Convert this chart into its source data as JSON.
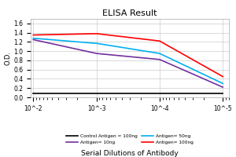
{
  "title": "ELISA Result",
  "ylabel": "O.D.",
  "xlabel": "Serial Dilutions of Antibody",
  "x_ticks": [
    0.01,
    0.001,
    0.0001,
    1e-05
  ],
  "x_tick_labels": [
    "10^-2",
    "10^-3",
    "10^-4",
    "10^-5"
  ],
  "ylim": [
    0,
    1.7
  ],
  "yticks": [
    0,
    0.2,
    0.4,
    0.6,
    0.8,
    1.0,
    1.2,
    1.4,
    1.6
  ],
  "lines": {
    "control": {
      "label": "Control Antigen = 100ng",
      "color": "#000000",
      "y_values": [
        0.08,
        0.08,
        0.08,
        0.08
      ]
    },
    "antigen_10ng": {
      "label": "Antigen= 10ng",
      "color": "#7030a0",
      "y_values": [
        1.25,
        0.95,
        0.82,
        0.22
      ]
    },
    "antigen_50ng": {
      "label": "Antigen= 50ng",
      "color": "#00b0f0",
      "y_values": [
        1.28,
        1.17,
        0.95,
        0.3
      ]
    },
    "antigen_100ng": {
      "label": "Antigen= 100ng",
      "color": "#ff0000",
      "y_values": [
        1.35,
        1.38,
        1.22,
        0.45
      ]
    }
  },
  "background_color": "#ffffff",
  "grid_color": "#cccccc"
}
